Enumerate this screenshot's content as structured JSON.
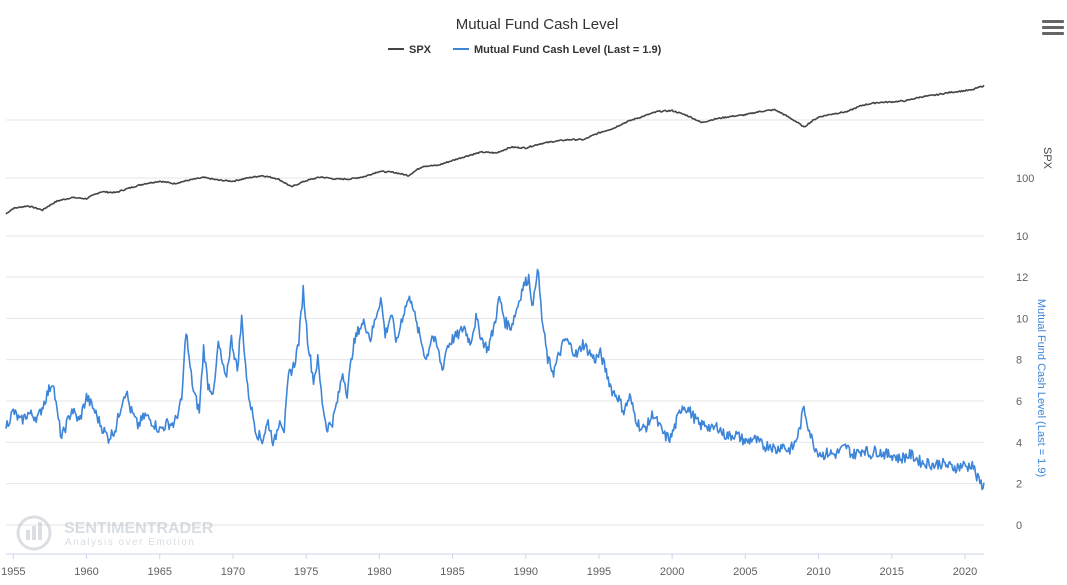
{
  "chart_data": {
    "type": "line",
    "title": "Mutual Fund Cash Level",
    "legend_position": "top-center",
    "colors": {
      "spx": "#444444",
      "cash": "#3d85d9"
    },
    "x_axis": {
      "range": [
        1954.5,
        2021.3
      ],
      "ticks": [
        "1955",
        "1960",
        "1965",
        "1970",
        "1975",
        "1980",
        "1985",
        "1990",
        "1995",
        "2000",
        "2005",
        "2010",
        "2015",
        "2020"
      ]
    },
    "spx_axis": {
      "title": "SPX",
      "scale": "log",
      "range": [
        1,
        10000
      ],
      "ticks": [
        "10",
        "100"
      ],
      "tick_values": [
        10,
        100
      ],
      "grid": true
    },
    "cash_axis": {
      "title": "Mutual Fund Cash Level (Last = 1.9)",
      "range": [
        0,
        13
      ],
      "ticks": [
        "0",
        "2",
        "4",
        "6",
        "8",
        "10",
        "12"
      ],
      "tick_values": [
        0,
        2,
        4,
        6,
        8,
        10,
        12
      ],
      "grid": true
    },
    "series": [
      {
        "name": "SPX",
        "points": [
          [
            1954.5,
            24
          ],
          [
            1955,
            30
          ],
          [
            1956,
            33
          ],
          [
            1957,
            28
          ],
          [
            1958,
            40
          ],
          [
            1959,
            46
          ],
          [
            1960,
            44
          ],
          [
            1961,
            58
          ],
          [
            1962,
            56
          ],
          [
            1963,
            68
          ],
          [
            1964,
            80
          ],
          [
            1965,
            88
          ],
          [
            1966,
            80
          ],
          [
            1967,
            92
          ],
          [
            1968,
            102
          ],
          [
            1969,
            92
          ],
          [
            1970,
            88
          ],
          [
            1971,
            100
          ],
          [
            1972,
            110
          ],
          [
            1973,
            98
          ],
          [
            1974,
            70
          ],
          [
            1975,
            90
          ],
          [
            1976,
            104
          ],
          [
            1977,
            96
          ],
          [
            1978,
            96
          ],
          [
            1979,
            106
          ],
          [
            1980,
            130
          ],
          [
            1981,
            125
          ],
          [
            1982,
            110
          ],
          [
            1983,
            160
          ],
          [
            1984,
            165
          ],
          [
            1985,
            200
          ],
          [
            1986,
            240
          ],
          [
            1987,
            280
          ],
          [
            1988,
            270
          ],
          [
            1989,
            340
          ],
          [
            1990,
            330
          ],
          [
            1991,
            390
          ],
          [
            1992,
            430
          ],
          [
            1993,
            460
          ],
          [
            1994,
            460
          ],
          [
            1995,
            600
          ],
          [
            1996,
            720
          ],
          [
            1997,
            950
          ],
          [
            1998,
            1150
          ],
          [
            1999,
            1400
          ],
          [
            2000,
            1450
          ],
          [
            2001,
            1200
          ],
          [
            2002,
            900
          ],
          [
            2003,
            1050
          ],
          [
            2004,
            1150
          ],
          [
            2005,
            1230
          ],
          [
            2006,
            1400
          ],
          [
            2007,
            1500
          ],
          [
            2008,
            1100
          ],
          [
            2009,
            750
          ],
          [
            2010,
            1120
          ],
          [
            2011,
            1280
          ],
          [
            2012,
            1400
          ],
          [
            2013,
            1800
          ],
          [
            2014,
            2000
          ],
          [
            2015,
            2050
          ],
          [
            2016,
            2150
          ],
          [
            2017,
            2500
          ],
          [
            2018,
            2700
          ],
          [
            2019,
            3000
          ],
          [
            2020,
            3200
          ],
          [
            2020.5,
            3300
          ],
          [
            2021,
            3700
          ],
          [
            2021.3,
            3900
          ]
        ]
      },
      {
        "name": "Mutual Fund Cash Level (Last = 1.9)",
        "points": [
          [
            1954.5,
            4.8
          ],
          [
            1955,
            5.5
          ],
          [
            1955.5,
            5.0
          ],
          [
            1956,
            5.4
          ],
          [
            1956.7,
            5.2
          ],
          [
            1957.3,
            6.3
          ],
          [
            1957.7,
            7.0
          ],
          [
            1958,
            5.4
          ],
          [
            1958.3,
            4.2
          ],
          [
            1958.7,
            5.0
          ],
          [
            1959,
            5.6
          ],
          [
            1959.5,
            5.0
          ],
          [
            1960,
            6.2
          ],
          [
            1960.5,
            5.6
          ],
          [
            1961,
            4.8
          ],
          [
            1961.5,
            4.2
          ],
          [
            1962,
            4.7
          ],
          [
            1962.5,
            6.2
          ],
          [
            1962.7,
            6.5
          ],
          [
            1963,
            5.6
          ],
          [
            1963.5,
            4.8
          ],
          [
            1964,
            5.3
          ],
          [
            1964.5,
            5.0
          ],
          [
            1965,
            4.6
          ],
          [
            1965.5,
            4.9
          ],
          [
            1966,
            4.9
          ],
          [
            1966.5,
            6.0
          ],
          [
            1966.8,
            9.5
          ],
          [
            1967,
            8.0
          ],
          [
            1967.3,
            6.5
          ],
          [
            1967.7,
            5.5
          ],
          [
            1968,
            8.6
          ],
          [
            1968.3,
            6.8
          ],
          [
            1968.7,
            6.4
          ],
          [
            1969,
            8.8
          ],
          [
            1969.5,
            7.0
          ],
          [
            1969.9,
            9.0
          ],
          [
            1970.3,
            7.5
          ],
          [
            1970.6,
            10.0
          ],
          [
            1971,
            6.6
          ],
          [
            1971.3,
            5.5
          ],
          [
            1971.6,
            4.5
          ],
          [
            1972,
            4.1
          ],
          [
            1972.4,
            5.0
          ],
          [
            1972.8,
            3.9
          ],
          [
            1973.2,
            5.2
          ],
          [
            1973.5,
            4.6
          ],
          [
            1973.8,
            7.2
          ],
          [
            1974.2,
            7.8
          ],
          [
            1974.5,
            8.9
          ],
          [
            1974.8,
            11.4
          ],
          [
            1975.1,
            9.0
          ],
          [
            1975.5,
            7.0
          ],
          [
            1975.8,
            8.0
          ],
          [
            1976.1,
            6.0
          ],
          [
            1976.4,
            4.7
          ],
          [
            1976.8,
            5.0
          ],
          [
            1977.2,
            6.2
          ],
          [
            1977.5,
            7.4
          ],
          [
            1977.8,
            6.4
          ],
          [
            1978.2,
            8.6
          ],
          [
            1978.6,
            9.5
          ],
          [
            1979,
            9.8
          ],
          [
            1979.4,
            9.0
          ],
          [
            1979.8,
            10.2
          ],
          [
            1980.1,
            11.0
          ],
          [
            1980.4,
            9.2
          ],
          [
            1980.8,
            10.2
          ],
          [
            1981.2,
            8.8
          ],
          [
            1981.5,
            9.9
          ],
          [
            1981.9,
            10.8
          ],
          [
            1982.2,
            11.0
          ],
          [
            1982.5,
            9.8
          ],
          [
            1982.9,
            8.8
          ],
          [
            1983.2,
            8.0
          ],
          [
            1983.6,
            9.2
          ],
          [
            1984,
            8.5
          ],
          [
            1984.3,
            7.5
          ],
          [
            1984.6,
            8.6
          ],
          [
            1985,
            9.0
          ],
          [
            1985.4,
            9.2
          ],
          [
            1985.8,
            9.6
          ],
          [
            1986.2,
            8.8
          ],
          [
            1986.6,
            10.0
          ],
          [
            1987,
            9.0
          ],
          [
            1987.4,
            8.5
          ],
          [
            1987.8,
            9.5
          ],
          [
            1988.2,
            11.0
          ],
          [
            1988.6,
            9.8
          ],
          [
            1989,
            9.6
          ],
          [
            1989.4,
            10.5
          ],
          [
            1989.8,
            11.5
          ],
          [
            1990.2,
            12.0
          ],
          [
            1990.5,
            10.5
          ],
          [
            1990.8,
            12.6
          ],
          [
            1991.1,
            10.0
          ],
          [
            1991.5,
            8.0
          ],
          [
            1991.9,
            7.4
          ],
          [
            1992.3,
            8.3
          ],
          [
            1992.7,
            9.0
          ],
          [
            1993.1,
            8.6
          ],
          [
            1993.5,
            8.2
          ],
          [
            1993.9,
            8.8
          ],
          [
            1994.3,
            8.4
          ],
          [
            1994.7,
            8.0
          ],
          [
            1995.1,
            8.3
          ],
          [
            1995.5,
            7.4
          ],
          [
            1995.9,
            6.5
          ],
          [
            1996.3,
            6.2
          ],
          [
            1996.7,
            5.5
          ],
          [
            1997.1,
            6.2
          ],
          [
            1997.5,
            5.2
          ],
          [
            1997.9,
            4.6
          ],
          [
            1998.3,
            4.8
          ],
          [
            1998.7,
            5.4
          ],
          [
            1999.1,
            4.8
          ],
          [
            1999.5,
            4.3
          ],
          [
            1999.9,
            4.2
          ],
          [
            2000.3,
            5.0
          ],
          [
            2000.7,
            5.8
          ],
          [
            2001.1,
            5.6
          ],
          [
            2001.5,
            5.2
          ],
          [
            2001.9,
            4.8
          ],
          [
            2002.3,
            4.9
          ],
          [
            2002.7,
            4.6
          ],
          [
            2003.1,
            4.8
          ],
          [
            2003.5,
            4.4
          ],
          [
            2003.9,
            4.3
          ],
          [
            2004.3,
            4.4
          ],
          [
            2004.7,
            4.2
          ],
          [
            2005.1,
            4.0
          ],
          [
            2005.5,
            4.2
          ],
          [
            2005.9,
            4.0
          ],
          [
            2006.3,
            3.8
          ],
          [
            2006.7,
            3.9
          ],
          [
            2007.1,
            3.6
          ],
          [
            2007.5,
            3.9
          ],
          [
            2007.9,
            3.6
          ],
          [
            2008.3,
            3.8
          ],
          [
            2008.7,
            4.6
          ],
          [
            2009,
            5.7
          ],
          [
            2009.3,
            4.8
          ],
          [
            2009.6,
            4.0
          ],
          [
            2009.9,
            3.6
          ],
          [
            2010.3,
            3.4
          ],
          [
            2010.7,
            3.5
          ],
          [
            2011.1,
            3.4
          ],
          [
            2011.5,
            3.6
          ],
          [
            2011.9,
            3.8
          ],
          [
            2012.3,
            3.4
          ],
          [
            2012.7,
            3.5
          ],
          [
            2013.1,
            3.7
          ],
          [
            2013.5,
            3.4
          ],
          [
            2013.9,
            3.6
          ],
          [
            2014.3,
            3.5
          ],
          [
            2014.7,
            3.4
          ],
          [
            2015.1,
            3.4
          ],
          [
            2015.5,
            3.2
          ],
          [
            2015.9,
            3.3
          ],
          [
            2016.3,
            3.4
          ],
          [
            2016.7,
            3.2
          ],
          [
            2017.1,
            3.0
          ],
          [
            2017.5,
            3.0
          ],
          [
            2017.9,
            2.9
          ],
          [
            2018.3,
            3.0
          ],
          [
            2018.7,
            2.9
          ],
          [
            2019.1,
            2.8
          ],
          [
            2019.5,
            2.8
          ],
          [
            2019.9,
            2.9
          ],
          [
            2020.2,
            2.8
          ],
          [
            2020.5,
            3.0
          ],
          [
            2020.8,
            2.3
          ],
          [
            2021.1,
            2.0
          ],
          [
            2021.3,
            1.9
          ]
        ]
      }
    ]
  },
  "watermark": {
    "brand": "SENTIMENTRADER",
    "tagline": "Analysis over Emotion"
  }
}
